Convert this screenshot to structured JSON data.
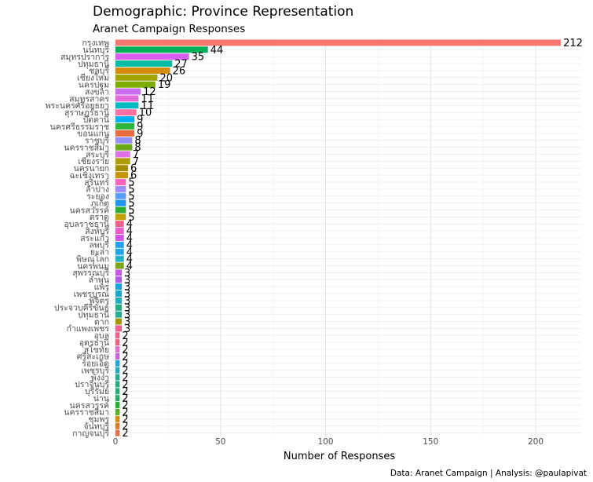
{
  "title": "Demographic: Province Representation",
  "subtitle": "Aranet Campaign Responses",
  "caption": "Data: Aranet Campaign | Analysis: @paulapivat",
  "chart_data": {
    "type": "bar",
    "orientation": "horizontal",
    "title": "Demographic: Province Representation",
    "subtitle": "Aranet Campaign Responses",
    "xlabel": "Number of Responses",
    "ylabel": "",
    "xlim": [
      0,
      220
    ],
    "xticks": [
      0,
      50,
      100,
      150,
      200
    ],
    "grid": true,
    "legend": "none",
    "categories": [
      "กรุงเทพ",
      "นนทบุรี",
      "สมุทรปราการ",
      "ปทุมธานี",
      "ชลบุรี",
      "เชียงใหม่",
      "นครปฐม",
      "สงขลา",
      "สมุทรสาคร",
      "พระนครศรีอยุธยา",
      "สุราษฎร์ธานี",
      "ปัตตานี",
      "นครศรีธรรมราช",
      "ขอนแก่น",
      "ราชบุรี",
      "นครราชสีมา",
      "สระบุรี",
      "เชียงราย",
      "นครนายก",
      "ฉะเชิงเทรา",
      "สุรินทร์",
      "ลำปาง",
      "ระยอง",
      "ภูเก็ต",
      "นครสวรรค์",
      "ตราด",
      "อุบลราชธานี",
      "สิงห์บุรี",
      "สระแก้ว",
      "ลพบุรี",
      "ยะลา",
      "พิษณุโลก",
      "นครพนม",
      "สุพรรณบุรี",
      "ลำพูน",
      "แพร่",
      "เพชรบูรณ์",
      "พิจิตร",
      "ประจวบคีรีขันธ์",
      "ปทุมธานี",
      "ตาก",
      "กำแพงเพชร",
      "อุบล",
      "อุดรธานี",
      "สุโขทัย",
      "ศรีสะเกษ",
      "ร้อยเอ็ด",
      "เพชรบุรี",
      "พังงา",
      "ปราจีนบุรี",
      "บุรีรัมย์",
      "น่าน",
      "นครสวรรค์",
      "นครราชสีมา",
      "ชุมพร",
      "จันทบุรี",
      "กาญจนบุรี"
    ],
    "values": [
      212,
      44,
      35,
      27,
      26,
      20,
      19,
      12,
      11,
      11,
      10,
      9,
      9,
      9,
      8,
      8,
      7,
      7,
      6,
      6,
      5,
      5,
      5,
      5,
      5,
      5,
      4,
      4,
      4,
      4,
      4,
      4,
      4,
      3,
      3,
      3,
      3,
      3,
      3,
      3,
      3,
      3,
      2,
      2,
      2,
      2,
      2,
      2,
      2,
      2,
      2,
      2,
      2,
      2,
      2,
      2,
      2
    ],
    "colors": [
      "#F8766D",
      "#00B159",
      "#D85EF0",
      "#00BDA3",
      "#D58C00",
      "#A3A500",
      "#7CAE00",
      "#C86DF0",
      "#E36AD8",
      "#00BCC1",
      "#FF6FA2",
      "#00B0F6",
      "#2EB53B",
      "#E76B3C",
      "#9590FF",
      "#6BA914",
      "#E070E8",
      "#B09D00",
      "#A58F00",
      "#C79500",
      "#FF62BC",
      "#9C8CFF",
      "#5A9CFF",
      "#1C96F0",
      "#2CAF30",
      "#C3A100",
      "#F0608A",
      "#F057C8",
      "#D254E8",
      "#20A0F0",
      "#1FA5E8",
      "#24AFC9",
      "#7AA617",
      "#C65AE8",
      "#B058E8",
      "#18A2E6",
      "#1BA6D2",
      "#1CAFC0",
      "#20AE80",
      "#24AE94",
      "#A39700",
      "#F0608A",
      "#F0608A",
      "#E8607E",
      "#E36AD8",
      "#CF60E6",
      "#1CA6E4",
      "#1CAFC0",
      "#20AE90",
      "#20AE80",
      "#22AE72",
      "#22AE62",
      "#2CAF30",
      "#4FB020",
      "#D58C00",
      "#DA7B20",
      "#E86E4C"
    ]
  }
}
